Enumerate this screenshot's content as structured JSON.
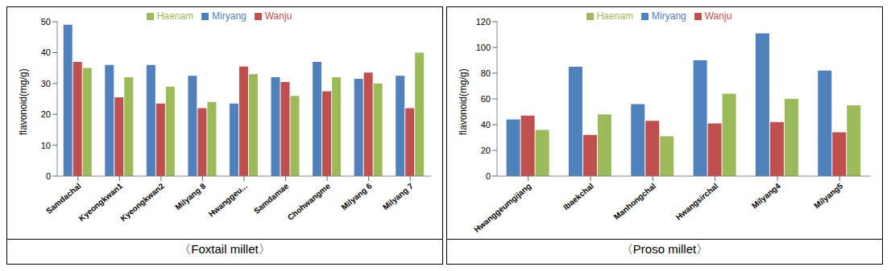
{
  "chart_data": [
    {
      "type": "bar",
      "title": "〈Foxtail millet〉",
      "y_label": "flavonoid(mg/g)",
      "categories": [
        "Samdachal",
        "Kyeongkwan1",
        "Kyeongkwan2",
        "Milyang 8",
        "Hwanggeu...",
        "Samdamae",
        "Chohwangme",
        "Milyang 6",
        "Milyang 7"
      ],
      "series": [
        {
          "name": "Miryang",
          "color": "#4f81bd",
          "values": [
            49,
            36,
            36,
            32.5,
            23.5,
            32,
            37,
            31.5,
            32.5
          ]
        },
        {
          "name": "Wanju",
          "color": "#c0504d",
          "values": [
            37,
            25.5,
            23.5,
            22,
            35.5,
            30.5,
            27.5,
            33.5,
            22
          ]
        },
        {
          "name": "Haenam",
          "color": "#9bbb59",
          "values": [
            35,
            32,
            29,
            24,
            33,
            26,
            32,
            30,
            40
          ]
        }
      ],
      "ylim": [
        0,
        50
      ],
      "yticks": [
        0,
        10,
        20,
        30,
        40,
        50
      ],
      "grid": false,
      "legend": "top"
    },
    {
      "type": "bar",
      "title": "〈Proso millet〉",
      "y_label": "flavonoid(mg/g)",
      "categories": [
        "Hwanggeumgijang",
        "Ibaekchal",
        "Manhongchal",
        "Hwangsirchal",
        "Milyang4",
        "Milyang5"
      ],
      "series": [
        {
          "name": "Miryang",
          "color": "#4f81bd",
          "values": [
            44,
            85,
            56,
            90,
            111,
            82
          ]
        },
        {
          "name": "Wanju",
          "color": "#c0504d",
          "values": [
            47,
            32,
            43,
            41,
            42,
            34
          ]
        },
        {
          "name": "Haenam",
          "color": "#9bbb59",
          "values": [
            36,
            48,
            31,
            64,
            60,
            55
          ]
        }
      ],
      "ylim": [
        0,
        120
      ],
      "yticks": [
        0,
        20,
        40,
        60,
        80,
        100,
        120
      ],
      "grid": false,
      "legend": "top"
    }
  ]
}
